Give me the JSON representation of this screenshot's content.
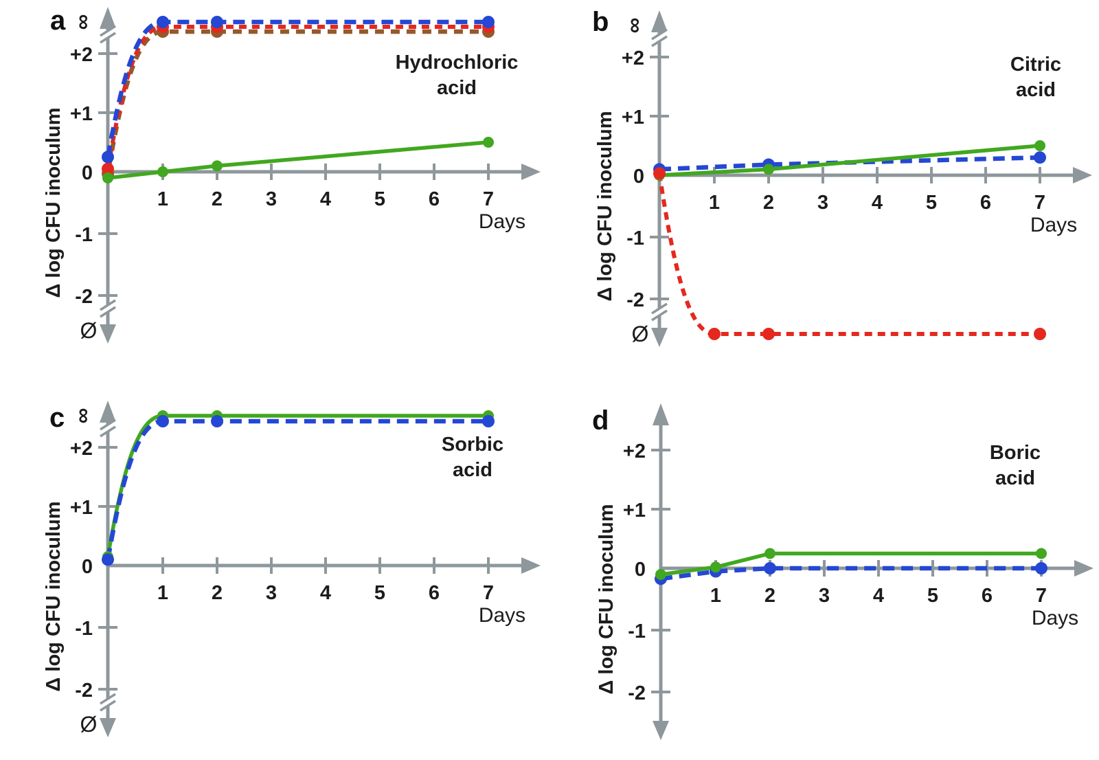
{
  "figure": {
    "background": "#ffffff",
    "y_axis_label": "Δ log CFU inoculum",
    "x_axis_label": "Days",
    "infinity_symbol": "∞",
    "void_symbol": "Ø",
    "colors": {
      "blue": "#2447d4",
      "red": "#e5281e",
      "brown": "#96592b",
      "green": "#41a81f",
      "axis": "#8e979b",
      "text": "#1c1c1c"
    }
  },
  "chart_data": [
    {
      "panel": "a",
      "type": "line",
      "title": "Hydrochloric acid",
      "title_lines": [
        "Hydrochloric",
        "acid"
      ],
      "xlabel": "Days",
      "ylabel": "Δ log CFU inoculum",
      "x_ticks": [
        "1",
        "2",
        "3",
        "4",
        "5",
        "6",
        "7"
      ],
      "y_ticks": [
        "+2",
        "+1",
        "0",
        "-1",
        "-2"
      ],
      "ylim": [
        -2,
        2
      ],
      "has_infinity": true,
      "has_void": true,
      "legend": "none",
      "series": [
        {
          "name": "brown dashed",
          "color": "brown",
          "line_style": "dashed",
          "days": [
            0,
            1,
            2,
            7
          ],
          "values": [
            -0.03,
            "inf",
            "inf",
            "inf"
          ],
          "markers": [
            0,
            1,
            2,
            7
          ],
          "inf_offset": 14
        },
        {
          "name": "red dashed",
          "color": "red",
          "line_style": "dashed",
          "days": [
            0,
            1,
            2,
            7
          ],
          "values": [
            0.05,
            "inf",
            "inf",
            "inf"
          ],
          "markers": [
            0,
            1,
            2,
            7
          ],
          "inf_offset": 7
        },
        {
          "name": "blue dashed",
          "color": "blue",
          "line_style": "dashed",
          "days": [
            0,
            1,
            2,
            7
          ],
          "values": [
            0.25,
            "inf",
            "inf",
            "inf"
          ],
          "markers": [
            0,
            1,
            2,
            7
          ],
          "inf_offset": 0
        },
        {
          "name": "green solid",
          "color": "green",
          "line_style": "solid",
          "days": [
            0,
            1,
            2,
            7
          ],
          "values": [
            -0.1,
            0,
            0.1,
            0.5
          ],
          "markers": [
            0,
            1,
            2,
            7
          ],
          "inf_offset": 0
        }
      ]
    },
    {
      "panel": "b",
      "type": "line",
      "title": "Citric acid",
      "title_lines": [
        "Citric",
        "acid"
      ],
      "xlabel": "Days",
      "ylabel": "Δ log CFU inoculum",
      "x_ticks": [
        "1",
        "2",
        "3",
        "4",
        "5",
        "6",
        "7"
      ],
      "y_ticks": [
        "+2",
        "+1",
        "0",
        "-1",
        "-2"
      ],
      "ylim": [
        -2,
        2
      ],
      "has_infinity": true,
      "has_void": true,
      "legend": "none",
      "series": [
        {
          "name": "blue dashed",
          "color": "blue",
          "line_style": "dashed",
          "days": [
            0,
            2,
            7
          ],
          "values": [
            0.1,
            0.18,
            0.3
          ],
          "markers": [
            0,
            2,
            7
          ],
          "inf_offset": 0
        },
        {
          "name": "green solid",
          "color": "green",
          "line_style": "solid",
          "days": [
            0,
            2,
            7
          ],
          "values": [
            0,
            0.1,
            0.5
          ],
          "markers": [
            0,
            2,
            7
          ],
          "inf_offset": 0
        },
        {
          "name": "red dashed",
          "color": "red",
          "line_style": "dashed",
          "days": [
            0,
            1,
            2,
            7
          ],
          "values": [
            0.03,
            "void",
            "void",
            "void"
          ],
          "markers": [
            0,
            1,
            2,
            7
          ],
          "inf_offset": 0
        }
      ]
    },
    {
      "panel": "c",
      "type": "line",
      "title": "Sorbic acid",
      "title_lines": [
        "Sorbic",
        "acid"
      ],
      "xlabel": "Days",
      "ylabel": "Δ log CFU inoculum",
      "x_ticks": [
        "1",
        "2",
        "3",
        "4",
        "5",
        "6",
        "7"
      ],
      "y_ticks": [
        "+2",
        "+1",
        "0",
        "-1",
        "-2"
      ],
      "ylim": [
        -2,
        2
      ],
      "has_infinity": true,
      "has_void": true,
      "legend": "none",
      "series": [
        {
          "name": "green solid",
          "color": "green",
          "line_style": "solid",
          "days": [
            0,
            1,
            2,
            7
          ],
          "values": [
            0.15,
            "inf",
            "inf",
            "inf"
          ],
          "markers": [
            0,
            1,
            2,
            7
          ],
          "inf_offset": 0
        },
        {
          "name": "blue dashed",
          "color": "blue",
          "line_style": "dashed",
          "days": [
            0,
            1,
            2,
            7
          ],
          "values": [
            0.1,
            "inf",
            "inf",
            "inf"
          ],
          "markers": [
            0,
            1,
            2,
            7
          ],
          "inf_offset": 8
        }
      ]
    },
    {
      "panel": "d",
      "type": "line",
      "title": "Boric acid",
      "title_lines": [
        "Boric",
        "acid"
      ],
      "xlabel": "Days",
      "ylabel": "Δ log CFU inoculum",
      "x_ticks": [
        "1",
        "2",
        "3",
        "4",
        "5",
        "6",
        "7"
      ],
      "y_ticks": [
        "+2",
        "+1",
        "0",
        "-1",
        "-2"
      ],
      "ylim": [
        -2,
        2
      ],
      "has_infinity": false,
      "has_void": false,
      "legend": "none",
      "series": [
        {
          "name": "blue dashed",
          "color": "blue",
          "line_style": "dashed",
          "days": [
            0,
            1,
            2,
            7
          ],
          "values": [
            -0.17,
            -0.05,
            0,
            0
          ],
          "markers": [
            0,
            1,
            2,
            7
          ],
          "inf_offset": 0
        },
        {
          "name": "green solid",
          "color": "green",
          "line_style": "solid",
          "days": [
            0,
            1,
            2,
            7
          ],
          "values": [
            -0.1,
            0.02,
            0.25,
            0.25
          ],
          "markers": [
            0,
            1,
            2,
            7
          ],
          "inf_offset": 0
        }
      ]
    }
  ]
}
